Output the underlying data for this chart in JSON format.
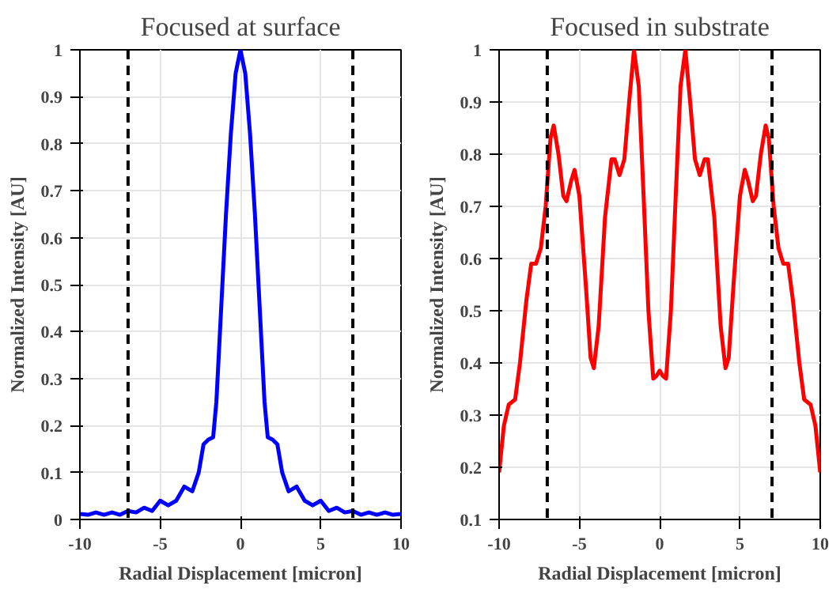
{
  "chart_data": [
    {
      "type": "line",
      "title": "Focused at surface",
      "xlabel": "Radial Displacement [micron]",
      "ylabel": "Normalized Intensity [AU]",
      "x": [
        -10,
        -9.5,
        -9,
        -8.5,
        -8,
        -7.5,
        -7,
        -6.5,
        -6,
        -5.5,
        -5,
        -4.5,
        -4,
        -3.5,
        -3,
        -2.6,
        -2.3,
        -2,
        -1.7,
        -1.5,
        -1.2,
        -0.9,
        -0.6,
        -0.3,
        0,
        0.3,
        0.6,
        0.9,
        1.2,
        1.5,
        1.7,
        2,
        2.3,
        2.6,
        3,
        3.5,
        4,
        4.5,
        5,
        5.5,
        6,
        6.5,
        7,
        7.5,
        8,
        8.5,
        9,
        9.5,
        10
      ],
      "series": [
        {
          "color": "#0000ff",
          "values": [
            0.012,
            0.01,
            0.015,
            0.01,
            0.015,
            0.01,
            0.018,
            0.015,
            0.025,
            0.018,
            0.04,
            0.03,
            0.04,
            0.07,
            0.06,
            0.1,
            0.16,
            0.17,
            0.175,
            0.25,
            0.45,
            0.65,
            0.82,
            0.95,
            1.0,
            0.95,
            0.82,
            0.65,
            0.45,
            0.25,
            0.175,
            0.17,
            0.16,
            0.1,
            0.06,
            0.07,
            0.04,
            0.03,
            0.04,
            0.018,
            0.025,
            0.015,
            0.018,
            0.01,
            0.015,
            0.01,
            0.015,
            0.01,
            0.012
          ]
        }
      ],
      "xlim": [
        -10,
        10
      ],
      "ylim": [
        0,
        1
      ],
      "xticks": [
        -10,
        -5,
        0,
        5,
        10
      ],
      "yticks": [
        0,
        0.1,
        0.2,
        0.3,
        0.4,
        0.5,
        0.6,
        0.7,
        0.8,
        0.9,
        1
      ],
      "grid": true,
      "ref_lines": [
        {
          "axis": "x",
          "value": -7,
          "color": "#000000",
          "line_style": "dashed"
        },
        {
          "axis": "x",
          "value": 7,
          "color": "#000000",
          "line_style": "dashed"
        }
      ]
    },
    {
      "type": "line",
      "title": "Focused in substrate",
      "xlabel": "Radial Displacement [micron]",
      "ylabel": "Normalized Intensity [AU]",
      "x": [
        -10,
        -9.7,
        -9.4,
        -9,
        -8.7,
        -8.3,
        -8,
        -7.7,
        -7.4,
        -7.1,
        -6.8,
        -6.6,
        -6.3,
        -6,
        -5.8,
        -5.5,
        -5.3,
        -5,
        -4.6,
        -4.3,
        -4.1,
        -3.8,
        -3.4,
        -3,
        -2.8,
        -2.5,
        -2.2,
        -1.9,
        -1.6,
        -1.3,
        -1,
        -0.7,
        -0.4,
        -0.2,
        0,
        0.2,
        0.4,
        0.7,
        1,
        1.3,
        1.6,
        1.9,
        2.2,
        2.5,
        2.8,
        3,
        3.4,
        3.8,
        4.1,
        4.3,
        4.6,
        5,
        5.3,
        5.5,
        5.8,
        6,
        6.3,
        6.6,
        6.8,
        7.1,
        7.4,
        7.7,
        8,
        8.3,
        8.7,
        9,
        9.4,
        9.7,
        10
      ],
      "series": [
        {
          "color": "#ff0000",
          "values": [
            0.19,
            0.28,
            0.32,
            0.33,
            0.4,
            0.52,
            0.59,
            0.59,
            0.62,
            0.7,
            0.83,
            0.855,
            0.8,
            0.72,
            0.71,
            0.75,
            0.77,
            0.72,
            0.55,
            0.41,
            0.39,
            0.47,
            0.68,
            0.79,
            0.79,
            0.76,
            0.79,
            0.9,
            1.0,
            0.93,
            0.72,
            0.5,
            0.37,
            0.375,
            0.385,
            0.375,
            0.37,
            0.5,
            0.72,
            0.93,
            1.0,
            0.9,
            0.79,
            0.76,
            0.79,
            0.79,
            0.68,
            0.47,
            0.39,
            0.41,
            0.55,
            0.72,
            0.77,
            0.75,
            0.71,
            0.72,
            0.8,
            0.855,
            0.83,
            0.7,
            0.62,
            0.59,
            0.59,
            0.52,
            0.4,
            0.33,
            0.32,
            0.28,
            0.19
          ]
        }
      ],
      "xlim": [
        -10,
        10
      ],
      "ylim": [
        0.1,
        1
      ],
      "xticks": [
        -10,
        -5,
        0,
        5,
        10
      ],
      "yticks": [
        0.1,
        0.2,
        0.3,
        0.4,
        0.5,
        0.6,
        0.7,
        0.8,
        0.9,
        1
      ],
      "grid": true,
      "ref_lines": [
        {
          "axis": "x",
          "value": -7,
          "color": "#000000",
          "line_style": "dashed"
        },
        {
          "axis": "x",
          "value": 7,
          "color": "#000000",
          "line_style": "dashed"
        }
      ]
    }
  ]
}
